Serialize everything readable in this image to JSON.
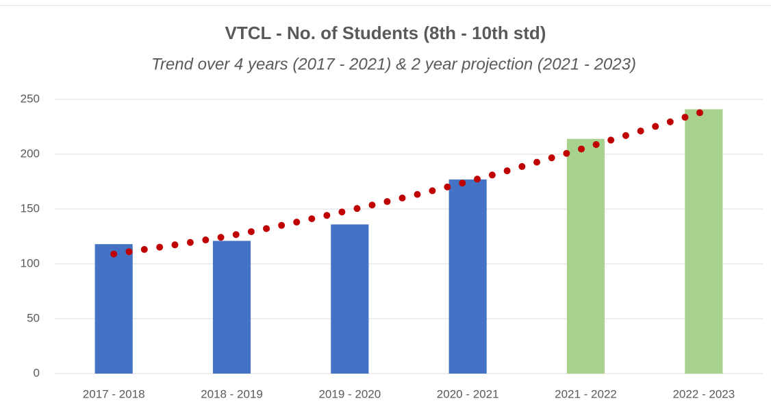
{
  "chart_data": {
    "type": "bar",
    "title": "VTCL - No. of Students (8th - 10th std)",
    "subtitle": "Trend over 4 years (2017 - 2021) & 2 year projection (2021 - 2023)",
    "categories": [
      "2017 - 2018",
      "2018 - 2019",
      "2019 - 2020",
      "2020 - 2021",
      "2021 - 2022",
      "2022 - 2023"
    ],
    "values": [
      118,
      121,
      136,
      177,
      214,
      241
    ],
    "colors": [
      "#4472c4",
      "#4472c4",
      "#4472c4",
      "#4472c4",
      "#a9d18e",
      "#a9d18e"
    ],
    "trendline": {
      "color": "#c00000",
      "values": [
        109,
        126,
        149,
        175,
        206,
        239
      ]
    },
    "ylim": [
      0,
      250
    ],
    "yticks": [
      0,
      50,
      100,
      150,
      200,
      250
    ],
    "grid": true
  }
}
